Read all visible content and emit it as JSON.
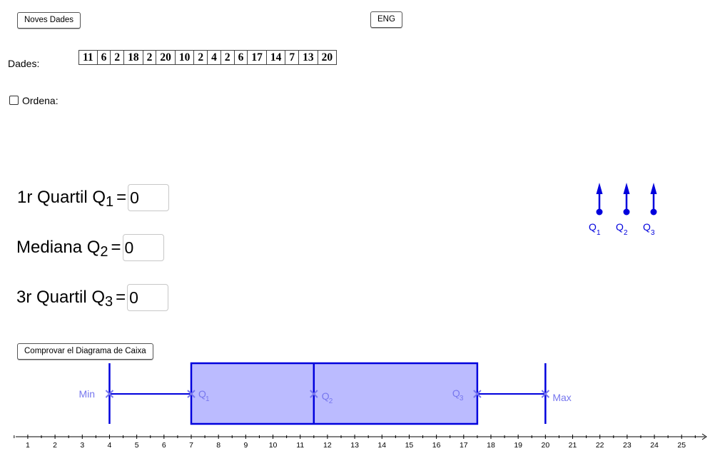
{
  "toolbar": {
    "new_data_label": "Noves Dades",
    "lang_label": "ENG",
    "check_label": "Comprovar el Diagrama de Caixa"
  },
  "data_section": {
    "label": "Dades:",
    "values": [
      11,
      6,
      2,
      18,
      2,
      20,
      10,
      2,
      4,
      2,
      6,
      17,
      14,
      7,
      13,
      20
    ]
  },
  "sort": {
    "label": "Ordena:",
    "checked": false
  },
  "quartiles": {
    "q1": {
      "prefix": "1r Quartil Q",
      "sub": "1",
      "eq": "=",
      "value": "0"
    },
    "q2": {
      "prefix": "Mediana Q",
      "sub": "2",
      "eq": "=",
      "value": "0"
    },
    "q3": {
      "prefix": "3r Quartil Q",
      "sub": "3",
      "eq": "=",
      "value": "0"
    }
  },
  "markers": [
    {
      "letter": "Q",
      "sub": "1"
    },
    {
      "letter": "Q",
      "sub": "2"
    },
    {
      "letter": "Q",
      "sub": "3"
    }
  ],
  "boxplot": {
    "min": 4,
    "q1": 7,
    "median": 11.5,
    "q3": 17.5,
    "max": 20,
    "labels": {
      "min": "Min",
      "max": "Max",
      "q": "Q",
      "q1_sub": "1",
      "q2_sub": "2",
      "q3_sub": "3"
    },
    "axis": {
      "ticks": [
        1,
        2,
        3,
        4,
        5,
        6,
        7,
        8,
        9,
        10,
        11,
        12,
        13,
        14,
        15,
        16,
        17,
        18,
        19,
        20,
        21,
        22,
        23,
        24,
        25
      ]
    },
    "colors": {
      "line": "#0000dd",
      "fill": "#bbbbff",
      "label": "#7777ee"
    }
  }
}
